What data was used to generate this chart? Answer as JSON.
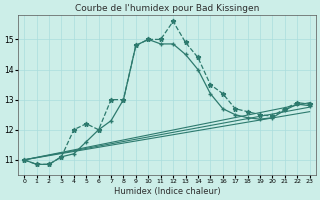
{
  "title": "Courbe de l'humidex pour Bad Kissingen",
  "xlabel": "Humidex (Indice chaleur)",
  "ylabel": "",
  "bg_color": "#cceee8",
  "grid_color": "#aadddd",
  "line_color": "#2d7a6e",
  "xlim": [
    -0.5,
    23.5
  ],
  "ylim": [
    10.5,
    15.8
  ],
  "yticks": [
    11,
    12,
    13,
    14,
    15
  ],
  "xticks": [
    0,
    1,
    2,
    3,
    4,
    5,
    6,
    7,
    8,
    9,
    10,
    11,
    12,
    13,
    14,
    15,
    16,
    17,
    18,
    19,
    20,
    21,
    22,
    23
  ],
  "line1_x": [
    0,
    1,
    2,
    3,
    4,
    5,
    6,
    7,
    8,
    9,
    10,
    11,
    12,
    13,
    14,
    15,
    16,
    17,
    18,
    19,
    20,
    21,
    22,
    23
  ],
  "line1_y": [
    11.0,
    10.85,
    10.85,
    11.1,
    12.0,
    12.2,
    12.0,
    13.0,
    13.0,
    14.8,
    15.0,
    15.0,
    15.6,
    14.9,
    14.4,
    13.5,
    13.2,
    12.7,
    12.6,
    12.5,
    12.45,
    12.7,
    12.9,
    12.85
  ],
  "line2_x": [
    0,
    1,
    2,
    3,
    4,
    5,
    6,
    7,
    8,
    9,
    10,
    11,
    12,
    13,
    14,
    15,
    16,
    17,
    18,
    19,
    20,
    21,
    22,
    23
  ],
  "line2_y": [
    11.0,
    10.85,
    10.85,
    11.1,
    11.2,
    11.6,
    12.0,
    12.3,
    13.0,
    14.8,
    15.0,
    14.85,
    14.85,
    14.5,
    14.0,
    13.2,
    12.7,
    12.5,
    12.4,
    12.35,
    12.4,
    12.65,
    12.85,
    12.8
  ],
  "line3_x": [
    0,
    23
  ],
  "line3_y": [
    11.0,
    12.9
  ],
  "line4_x": [
    0,
    23
  ],
  "line4_y": [
    11.0,
    12.75
  ],
  "line5_x": [
    0,
    23
  ],
  "line5_y": [
    11.0,
    12.6
  ]
}
